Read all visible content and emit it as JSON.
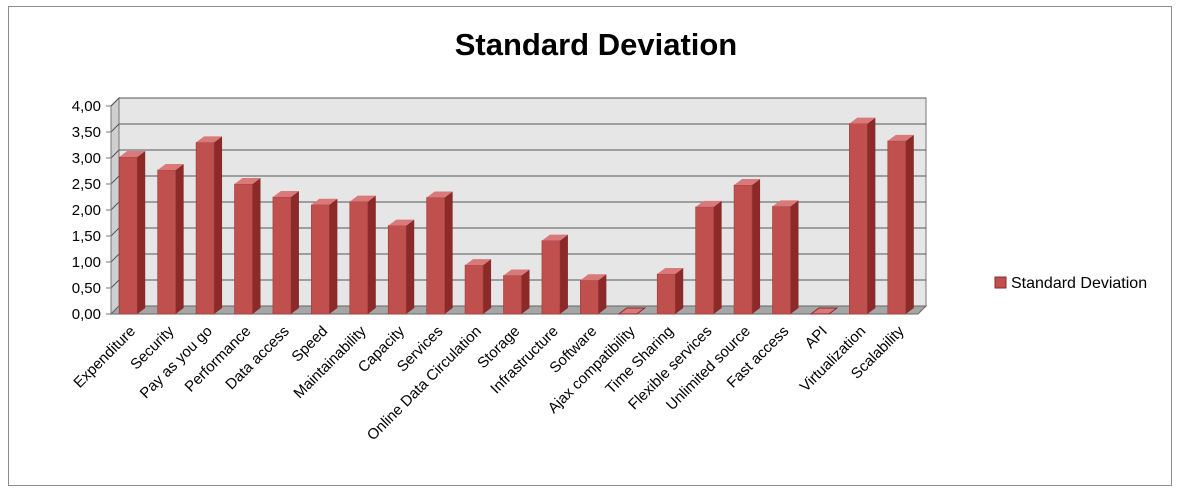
{
  "chart_data": {
    "type": "bar",
    "title": "Standard Deviation",
    "xlabel": "",
    "ylabel": "",
    "ylim": [
      0,
      4
    ],
    "ytick_step": 0.5,
    "ytick_labels": [
      "0,00",
      "0,50",
      "1,00",
      "1,50",
      "2,00",
      "2,50",
      "3,00",
      "3,50",
      "4,00"
    ],
    "grid": true,
    "style": "3d-column",
    "legend_position": "right",
    "categories": [
      "Expenditure",
      "Security",
      "Pay as you go",
      "Performance",
      "Data access",
      "Speed",
      "Maintainability",
      "Capacity",
      "Services",
      "Online Data Circulation",
      "Storage",
      "Infrastructure",
      "Software",
      "Ajax compatibility",
      "Time Sharing",
      "Flexible services",
      "Unlimited source",
      "Fast access",
      "API",
      "Virtualization",
      "Scalability"
    ],
    "series": [
      {
        "name": "Standard Deviation",
        "color": "#c0504d",
        "values": [
          3.02,
          2.77,
          3.3,
          2.5,
          2.25,
          2.1,
          2.16,
          1.7,
          2.24,
          0.94,
          0.74,
          1.41,
          0.65,
          0.0,
          0.77,
          2.06,
          2.48,
          2.07,
          0.0,
          3.66,
          3.33
        ]
      }
    ]
  },
  "colors": {
    "bar_front": "#c0504d",
    "bar_side": "#8b2a28",
    "bar_top": "#d9797a",
    "wall": "#e6e6e6",
    "floor": "#a6a6a6",
    "gridline": "#555555",
    "frame": "#8c8c8c"
  }
}
